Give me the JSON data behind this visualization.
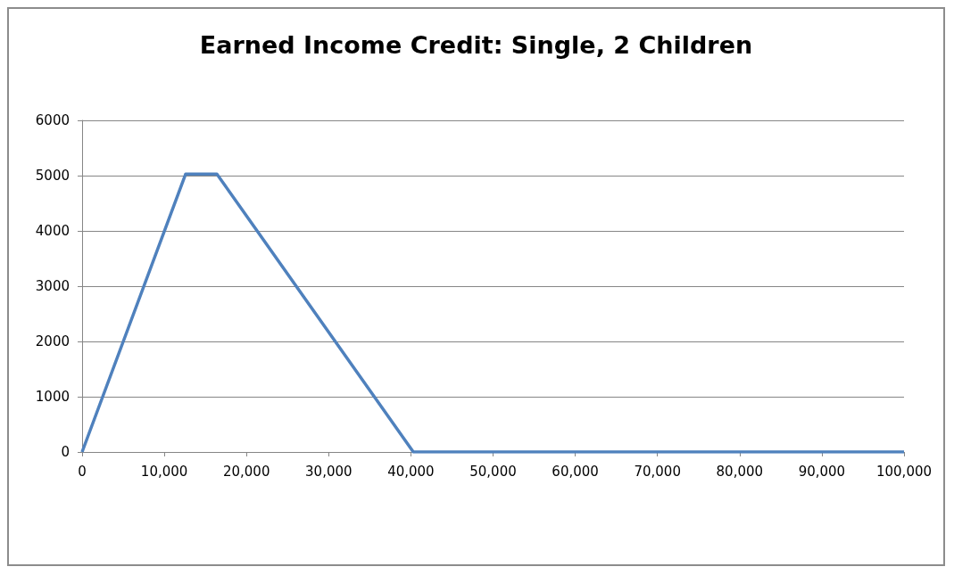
{
  "chart_data": {
    "type": "line",
    "title": "Earned Income Credit: Single, 2 Children",
    "x": [
      0,
      12600,
      16400,
      40300,
      100000
    ],
    "series": [
      {
        "color": "#4f81bd",
        "values": [
          0,
          5030,
          5030,
          0,
          0
        ]
      }
    ],
    "xlim": [
      0,
      100000
    ],
    "xticks": [
      0,
      {
        "value": 10000,
        "label": "10,000"
      },
      {
        "value": 20000,
        "label": "20,000"
      },
      {
        "value": 30000,
        "label": "30,000"
      },
      {
        "value": 40000,
        "label": "40,000"
      },
      {
        "value": 50000,
        "label": "50,000"
      },
      {
        "value": 60000,
        "label": "60,000"
      },
      {
        "value": 70000,
        "label": "70,000"
      },
      {
        "value": 80000,
        "label": "80,000"
      },
      {
        "value": 90000,
        "label": "90,000"
      },
      {
        "value": 100000,
        "label": "100,000"
      }
    ],
    "ylim": [
      0,
      6000
    ],
    "yticks": [
      0,
      1000,
      2000,
      3000,
      4000,
      5000,
      6000
    ],
    "grid": "y",
    "marker": "none",
    "line_style": "solid"
  }
}
